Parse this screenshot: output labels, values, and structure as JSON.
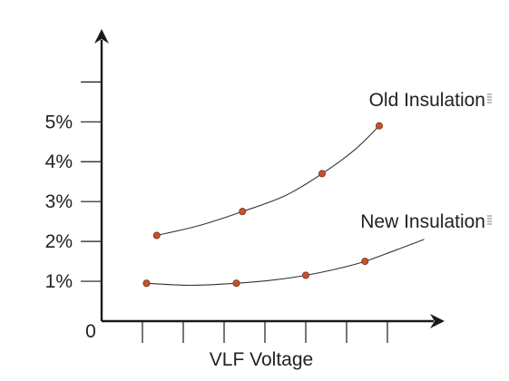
{
  "chart_data": {
    "type": "line",
    "title": "",
    "xlabel": "VLF Voltage",
    "ylabel": "",
    "origin_label": "0",
    "y_ticks": [
      {
        "value": 1,
        "label": "1%"
      },
      {
        "value": 2,
        "label": "2%"
      },
      {
        "value": 3,
        "label": "3%"
      },
      {
        "value": 4,
        "label": "4%"
      },
      {
        "value": 5,
        "label": "5%"
      }
    ],
    "y_extra_tick": 6,
    "ylim": [
      0,
      6.6
    ],
    "x_ticks": [
      1,
      2,
      3,
      4,
      5,
      6,
      7
    ],
    "xlim": [
      0,
      8.4
    ],
    "grid": false,
    "series": [
      {
        "name": "Old Insulation",
        "points": [
          [
            1.35,
            2.15
          ],
          [
            3.45,
            2.75
          ],
          [
            5.4,
            3.7
          ],
          [
            6.8,
            4.9
          ]
        ],
        "curve": [
          [
            1.35,
            2.15
          ],
          [
            2.4,
            2.4
          ],
          [
            3.45,
            2.75
          ],
          [
            4.5,
            3.15
          ],
          [
            5.4,
            3.7
          ],
          [
            6.2,
            4.3
          ],
          [
            6.8,
            4.9
          ]
        ]
      },
      {
        "name": "New Insulation",
        "points": [
          [
            1.1,
            0.95
          ],
          [
            3.3,
            0.95
          ],
          [
            5.0,
            1.15
          ],
          [
            6.45,
            1.5
          ]
        ],
        "curve": [
          [
            1.1,
            0.95
          ],
          [
            2.2,
            0.9
          ],
          [
            3.3,
            0.95
          ],
          [
            4.2,
            1.03
          ],
          [
            5.0,
            1.15
          ],
          [
            5.8,
            1.32
          ],
          [
            6.45,
            1.5
          ],
          [
            7.2,
            1.78
          ],
          [
            7.9,
            2.05
          ]
        ]
      }
    ],
    "colors": {
      "marker": "#c4532b",
      "line": "#333333",
      "axis": "#1a1a1a"
    }
  }
}
